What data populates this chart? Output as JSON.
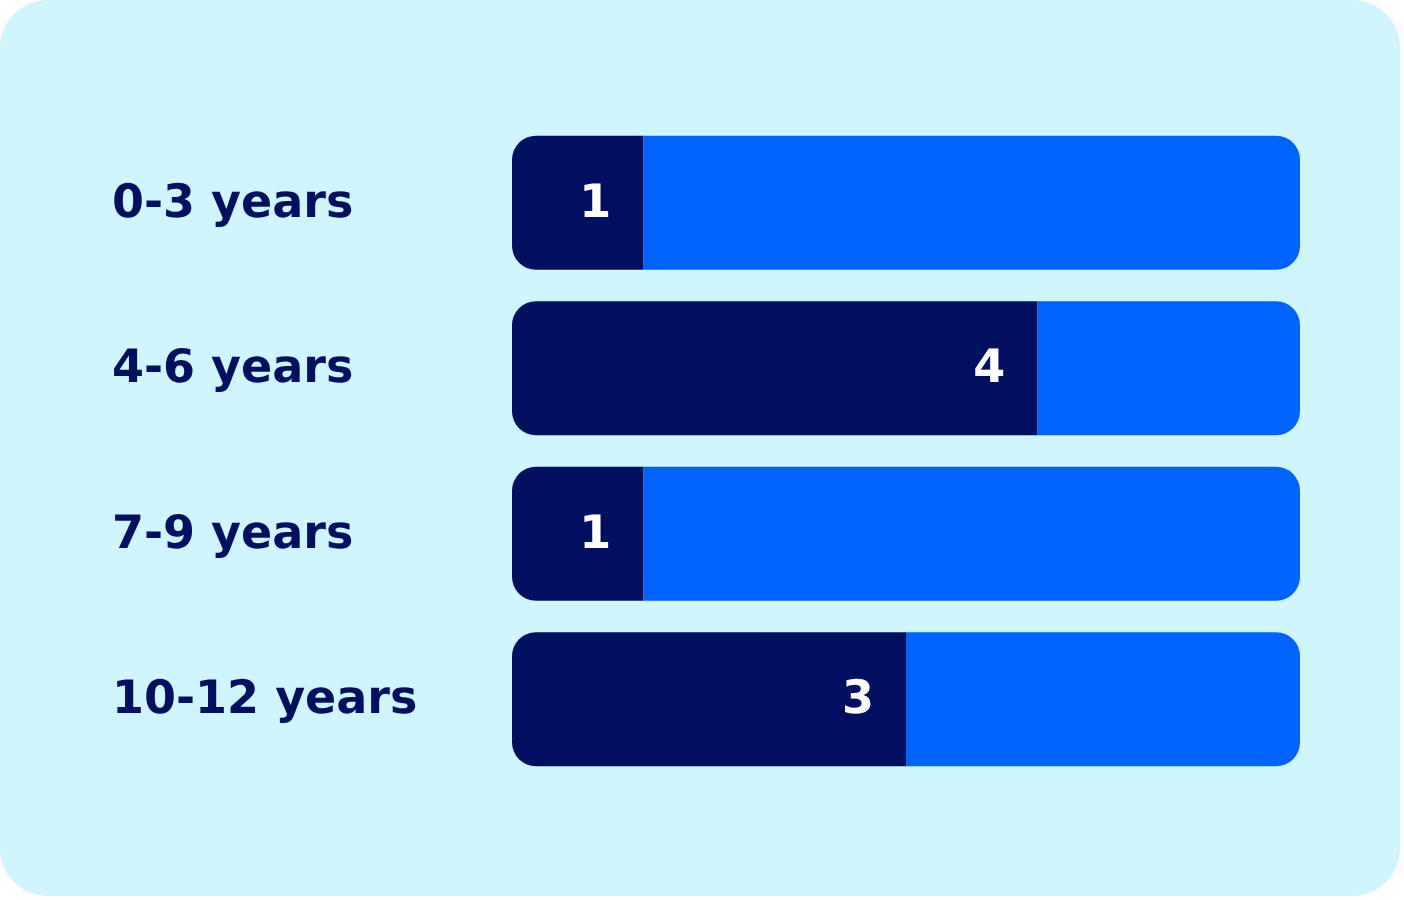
{
  "chart_data": {
    "type": "bar",
    "orientation": "horizontal",
    "stacked": true,
    "categories": [
      "0-3 years",
      "4-6 years",
      "7-9 years",
      "10-12 years"
    ],
    "series": [
      {
        "color": "#000f5f",
        "values": [
          1,
          4,
          1,
          3
        ],
        "value_labels": [
          "1",
          "4",
          "1",
          "3"
        ]
      },
      {
        "color": "#0062ff",
        "values": [
          5,
          2,
          5,
          3
        ]
      }
    ],
    "xlim": [
      0,
      6
    ],
    "tick_labels": "y"
  }
}
